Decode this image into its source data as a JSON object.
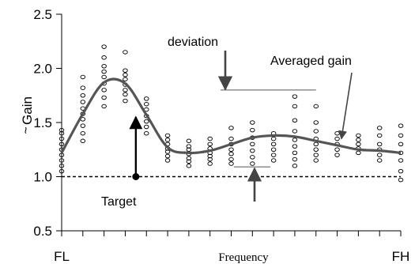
{
  "chart_data": {
    "type": "scatter",
    "xlabel": "Frequency",
    "ylabel": "Gain",
    "ylabel_accent": "~",
    "x_tick_labels": {
      "left": "FL",
      "right": "FH"
    },
    "xlim": [
      0,
      16
    ],
    "ylim": [
      0.5,
      2.5
    ],
    "y_ticks": [
      "0.5",
      "1.0",
      "1.5",
      "2.0",
      "2.5"
    ],
    "y_tick_values": [
      0.5,
      1.0,
      1.5,
      2.0,
      2.5
    ],
    "x_minor_ticks": [
      0,
      1,
      2,
      3,
      4,
      5,
      6,
      7,
      8,
      9,
      10,
      11,
      12,
      13,
      14,
      15,
      16
    ],
    "target": {
      "value": 1.0,
      "x": 3.5
    },
    "averaged_gain": {
      "x": [
        0,
        1,
        2,
        3,
        4,
        5,
        6,
        7,
        8,
        9,
        10,
        11,
        12,
        13,
        14,
        15,
        16
      ],
      "y": [
        1.22,
        1.58,
        1.87,
        1.86,
        1.57,
        1.27,
        1.22,
        1.24,
        1.3,
        1.36,
        1.38,
        1.37,
        1.33,
        1.29,
        1.25,
        1.24,
        1.22
      ]
    },
    "scatter_points": [
      [
        0,
        [
          1.05,
          1.1,
          1.15,
          1.2,
          1.25,
          1.3,
          1.35,
          1.4,
          1.43
        ]
      ],
      [
        1,
        [
          1.33,
          1.4,
          1.47,
          1.53,
          1.58,
          1.63,
          1.69,
          1.75,
          1.82,
          1.92
        ]
      ],
      [
        2,
        [
          1.65,
          1.73,
          1.8,
          1.86,
          1.92,
          1.97,
          2.02,
          2.1,
          2.2
        ]
      ],
      [
        3,
        [
          1.7,
          1.76,
          1.8,
          1.85,
          1.9,
          1.94,
          1.98,
          2.15
        ]
      ],
      [
        4,
        [
          1.4,
          1.46,
          1.51,
          1.56,
          1.62,
          1.67,
          1.72
        ]
      ],
      [
        5,
        [
          1.15,
          1.19,
          1.23,
          1.26,
          1.3,
          1.34,
          1.38
        ]
      ],
      [
        6,
        [
          1.1,
          1.14,
          1.17,
          1.21,
          1.25,
          1.28,
          1.33
        ]
      ],
      [
        7,
        [
          1.12,
          1.16,
          1.19,
          1.22,
          1.26,
          1.3,
          1.35
        ]
      ],
      [
        8,
        [
          1.12,
          1.16,
          1.21,
          1.25,
          1.3,
          1.35,
          1.45
        ]
      ],
      [
        9,
        [
          1.12,
          1.18,
          1.24,
          1.3,
          1.36,
          1.43,
          1.5
        ]
      ],
      [
        10,
        [
          1.15,
          1.2,
          1.25,
          1.3,
          1.35,
          1.4
        ]
      ],
      [
        11,
        [
          1.1,
          1.16,
          1.22,
          1.28,
          1.34,
          1.42,
          1.52,
          1.65,
          1.74
        ]
      ],
      [
        12,
        [
          1.15,
          1.2,
          1.25,
          1.3,
          1.35,
          1.42,
          1.5,
          1.65
        ]
      ],
      [
        13,
        [
          1.2,
          1.25,
          1.3,
          1.35,
          1.4
        ]
      ],
      [
        14,
        [
          1.22,
          1.26,
          1.3,
          1.34,
          1.38
        ]
      ],
      [
        15,
        [
          1.15,
          1.2,
          1.25,
          1.3,
          1.38,
          1.45
        ]
      ],
      [
        16,
        [
          0.97,
          1.05,
          1.15,
          1.22,
          1.3,
          1.38,
          1.47
        ]
      ]
    ],
    "deviation_band": {
      "x0": 7.5,
      "x1": 12,
      "upper": 1.8,
      "lower": 1.09
    },
    "annotations": {
      "deviation": "deviation",
      "averaged": "Averaged gain",
      "target": "Target"
    },
    "colors": {
      "line": "#555555",
      "points": "#000000",
      "target_line": "#000000",
      "arrow": "#444444"
    },
    "grid": false,
    "legend": "none"
  }
}
